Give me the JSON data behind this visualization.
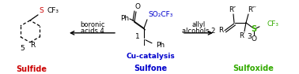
{
  "background_color": "#ffffff",
  "fig_width": 3.78,
  "fig_height": 0.94,
  "dpi": 100,
  "sulfide_label": "Sulfide",
  "sulfide_color": "#cc0000",
  "center_label": "Sulfone",
  "center_color": "#0000cc",
  "sulfoxide_label": "Sulfoxide",
  "sulfoxide_color": "#33aa00",
  "center_cat": "Cu-catalysis",
  "arrow_left_label1": "boronic",
  "arrow_left_label2": "acids 4",
  "arrow_right_label1": "allyl",
  "arrow_right_label2": "alcohols 2",
  "text_color_black": "#000000",
  "text_color_blue": "#0000cc",
  "text_color_red": "#cc0000",
  "text_color_green": "#33aa00"
}
